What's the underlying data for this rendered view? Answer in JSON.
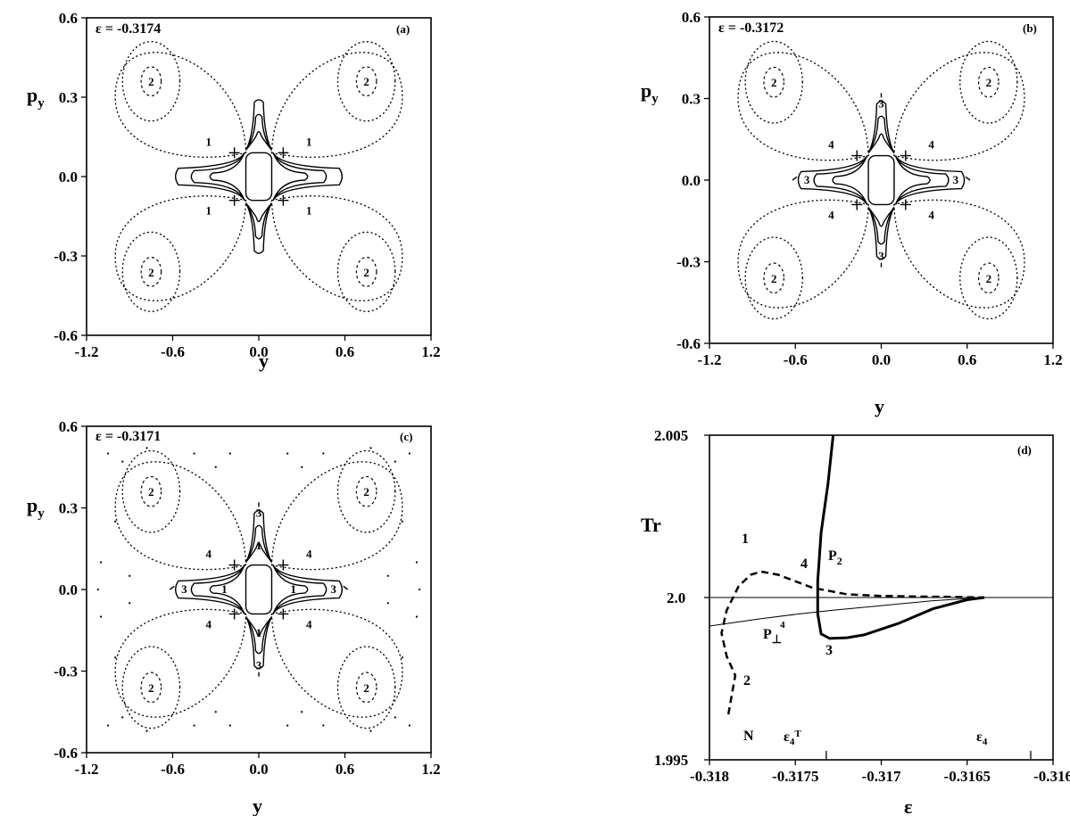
{
  "chart_data": [
    {
      "id": "a",
      "type": "scatter",
      "panel_label": "(a)",
      "annotation": "ε = -0.3174",
      "xlabel": "y",
      "ylabel": "p_y",
      "ylabel_main": "p",
      "ylabel_sub": "y",
      "xlim": [
        -1.2,
        1.2
      ],
      "ylim": [
        -0.6,
        0.6
      ],
      "xticks": [
        "-1.2",
        "-0.6",
        "0.0",
        "0.6",
        "1.2"
      ],
      "yticks": [
        "0.6",
        "0.3",
        "0.0",
        "-0.3",
        "-0.6"
      ],
      "island_labels": [
        "2",
        "2",
        "2",
        "2"
      ],
      "orbit_labels": [
        "1",
        "1",
        "1",
        "1"
      ],
      "features": {
        "period4_orbits": false,
        "outer_chaos": false
      }
    },
    {
      "id": "b",
      "type": "scatter",
      "panel_label": "(b)",
      "annotation": "ε = -0.3172",
      "xlabel": "y",
      "ylabel": "p_y",
      "ylabel_main": "p",
      "ylabel_sub": "y",
      "xlim": [
        -1.2,
        1.2
      ],
      "ylim": [
        -0.6,
        0.6
      ],
      "xticks": [
        "-1.2",
        "-0.6",
        "0.0",
        "0.6",
        "1.2"
      ],
      "yticks": [
        "0.6",
        "0.3",
        "0.0",
        "-0.3",
        "-0.6"
      ],
      "island_labels": [
        "2",
        "2",
        "2",
        "2"
      ],
      "orbit_labels": [
        "4",
        "4",
        "4",
        "4",
        "3",
        "3",
        "3",
        "3"
      ],
      "features": {
        "period4_orbits": true,
        "outer_chaos": false
      }
    },
    {
      "id": "c",
      "type": "scatter",
      "panel_label": "(c)",
      "annotation": "ε = -0.3171",
      "xlabel": "y",
      "ylabel": "p_y",
      "ylabel_main": "p",
      "ylabel_sub": "y",
      "xlim": [
        -1.2,
        1.2
      ],
      "ylim": [
        -0.6,
        0.6
      ],
      "xticks": [
        "-1.2",
        "-0.6",
        "0.0",
        "0.6",
        "1.2"
      ],
      "yticks": [
        "0.6",
        "0.3",
        "0.0",
        "-0.3",
        "-0.6"
      ],
      "island_labels": [
        "2",
        "2",
        "2",
        "2"
      ],
      "orbit_labels": [
        "4",
        "4",
        "4",
        "4",
        "3",
        "3",
        "3",
        "3",
        "1",
        "1",
        "1",
        "1"
      ],
      "features": {
        "period4_orbits": true,
        "outer_chaos": true
      }
    },
    {
      "id": "d",
      "type": "line",
      "panel_label": "(d)",
      "xlabel": "ε",
      "ylabel": "Tr",
      "xlim": [
        -0.318,
        -0.316
      ],
      "ylim": [
        1.995,
        2.005
      ],
      "xticks": [
        "-0.318",
        "-0.3175",
        "-0.317",
        "-0.3165",
        "-0.316"
      ],
      "ytick_top": "2.005",
      "ytick_mid": "2.0",
      "ytick_bot": "1.995",
      "reference_line": 2.0,
      "series": [
        {
          "name": "P₂",
          "style": "thick-solid",
          "x": [
            -0.31728,
            -0.31731,
            -0.31735,
            -0.31737,
            -0.31737,
            -0.31735,
            -0.3173,
            -0.3172,
            -0.3171,
            -0.3169,
            -0.3167,
            -0.3165,
            -0.3164
          ],
          "y": [
            2.005,
            2.0035,
            2.002,
            2.0005,
            1.9995,
            1.99888,
            1.99874,
            1.99876,
            1.99885,
            1.9992,
            1.99965,
            1.99993,
            2.0
          ]
        },
        {
          "name": "P⊥⁴",
          "style": "thin-solid",
          "x": [
            -0.318,
            -0.3177,
            -0.3175,
            -0.3173,
            -0.317,
            -0.3167,
            -0.3164
          ],
          "y": [
            1.99912,
            1.99935,
            1.99948,
            1.9996,
            1.99975,
            1.9999,
            2.0
          ]
        },
        {
          "name": "",
          "style": "dashed",
          "x": [
            -0.31789,
            -0.31787,
            -0.31785,
            -0.3179,
            -0.31793,
            -0.3179,
            -0.31783,
            -0.31776,
            -0.3177,
            -0.3176,
            -0.3175,
            -0.3174,
            -0.3173,
            -0.3172,
            -0.317,
            -0.3168,
            -0.3166,
            -0.3164
          ],
          "y": [
            1.9964,
            1.997,
            1.9976,
            1.9982,
            1.9989,
            1.9996,
            2.00035,
            2.0007,
            2.0008,
            2.0007,
            2.0005,
            2.0003,
            2.0002,
            2.0001,
            2.00005,
            2.00003,
            2.00002,
            2.0
          ]
        }
      ],
      "point_labels": {
        "n": "N",
        "one": "1",
        "two": "2",
        "three": "3",
        "four": "4",
        "p2_main": "P",
        "p2_sub": "2",
        "pperp_main": "P",
        "pperp_sub": "⊥",
        "pperp_sup": "4"
      },
      "markers": {
        "e4T_main": "ε",
        "e4T_sub": "4",
        "e4T_sup": "T",
        "e4T_x": -0.31732,
        "e4_main": "ε",
        "e4_sub": "4",
        "e4_x": -0.31613
      }
    }
  ]
}
